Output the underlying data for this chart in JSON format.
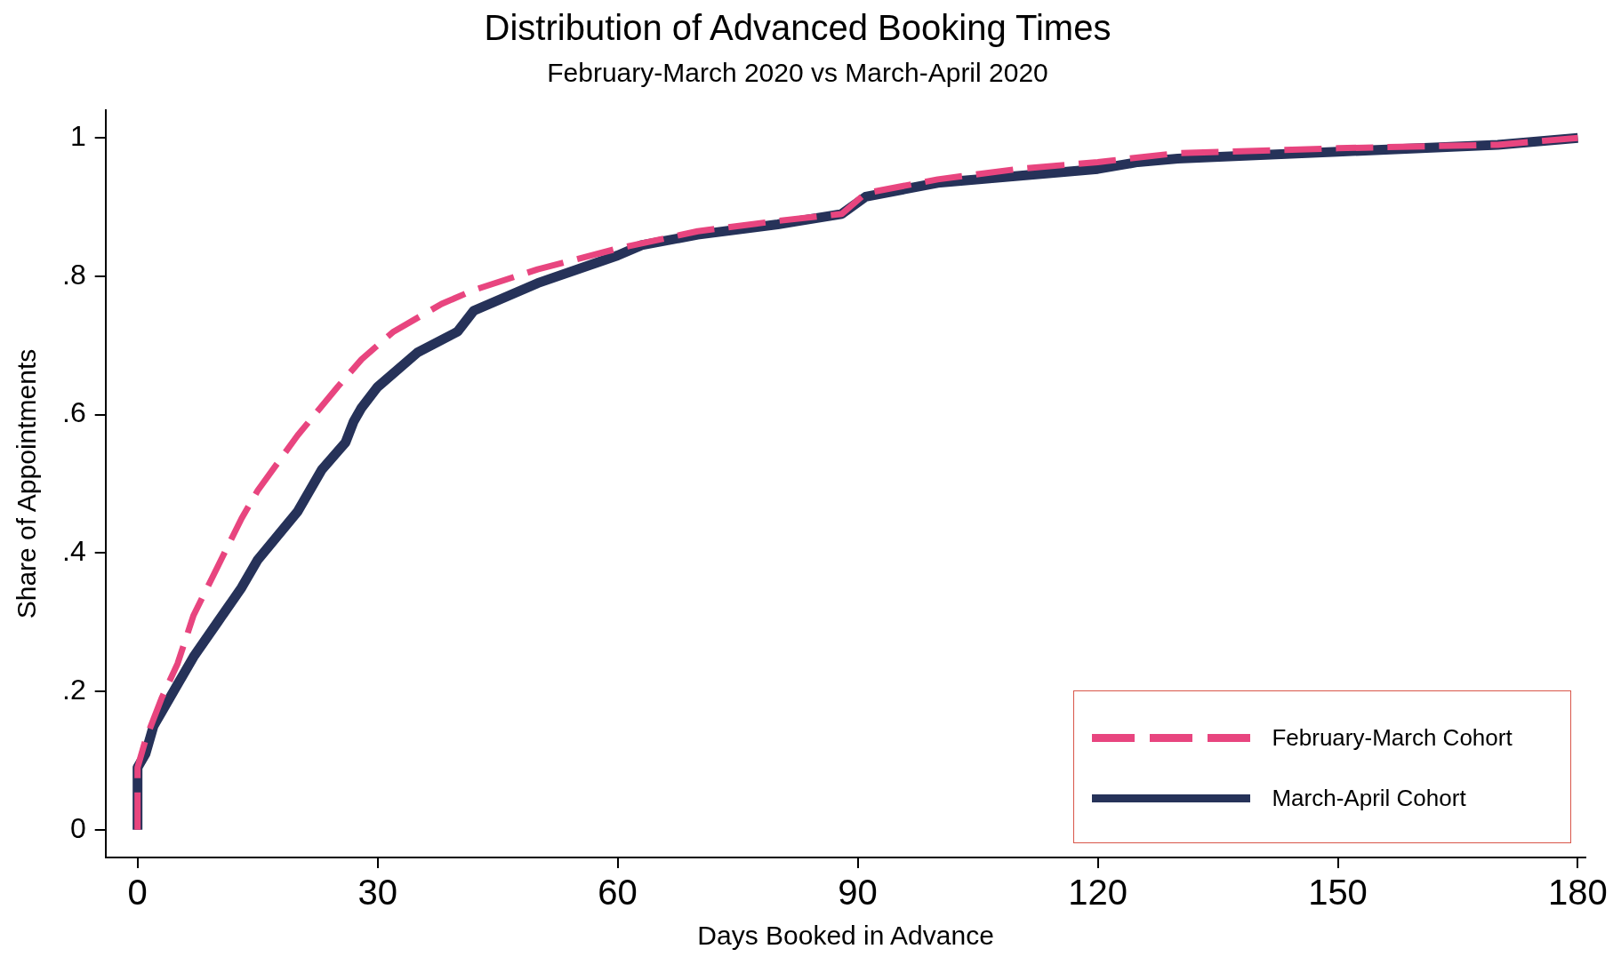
{
  "chart_data": {
    "type": "line",
    "title": "Distribution of Advanced Booking Times",
    "subtitle": "February-March 2020 vs March-April 2020",
    "xlabel": "Days Booked in Advance",
    "ylabel": "Share of Appointments",
    "xlim": [
      -4,
      181
    ],
    "xticks": [
      0,
      30,
      60,
      90,
      120,
      150,
      180
    ],
    "ylim": [
      -0.04,
      1.04
    ],
    "yticks": [
      0,
      {
        "value": 0.2,
        "label": ".2"
      },
      {
        "value": 0.4,
        "label": ".4"
      },
      {
        "value": 0.6,
        "label": ".6"
      },
      {
        "value": 0.8,
        "label": ".8"
      },
      1
    ],
    "grid": false,
    "legend": "bottom right",
    "marker": "none",
    "series": [
      {
        "name": "February-March Cohort",
        "color": "#e8457f",
        "line_style": "dashed",
        "x": [
          0,
          0,
          1,
          2,
          3,
          5,
          7,
          10,
          13,
          15,
          20,
          25,
          28,
          32,
          38,
          42,
          50,
          60,
          70,
          80,
          88,
          91,
          100,
          110,
          120,
          130,
          150,
          170,
          180
        ],
        "values": [
          0,
          0.09,
          0.13,
          0.16,
          0.19,
          0.24,
          0.31,
          0.38,
          0.45,
          0.49,
          0.57,
          0.64,
          0.68,
          0.72,
          0.76,
          0.78,
          0.81,
          0.84,
          0.865,
          0.88,
          0.89,
          0.92,
          0.94,
          0.955,
          0.965,
          0.978,
          0.985,
          0.99,
          1
        ]
      },
      {
        "name": "March-April Cohort",
        "color": "#263259",
        "line_style": "solid",
        "x": [
          0,
          0,
          1,
          2,
          3,
          5,
          7,
          10,
          13,
          15,
          20,
          23,
          26,
          27,
          28,
          30,
          35,
          40,
          42,
          50,
          60,
          63,
          70,
          80,
          88,
          91,
          100,
          110,
          120,
          125,
          130,
          150,
          170,
          180
        ],
        "values": [
          0,
          0.09,
          0.11,
          0.15,
          0.17,
          0.21,
          0.25,
          0.3,
          0.35,
          0.39,
          0.46,
          0.52,
          0.56,
          0.59,
          0.61,
          0.64,
          0.69,
          0.72,
          0.75,
          0.79,
          0.83,
          0.845,
          0.86,
          0.875,
          0.89,
          0.915,
          0.935,
          0.945,
          0.955,
          0.965,
          0.97,
          0.98,
          0.99,
          1
        ]
      }
    ]
  }
}
